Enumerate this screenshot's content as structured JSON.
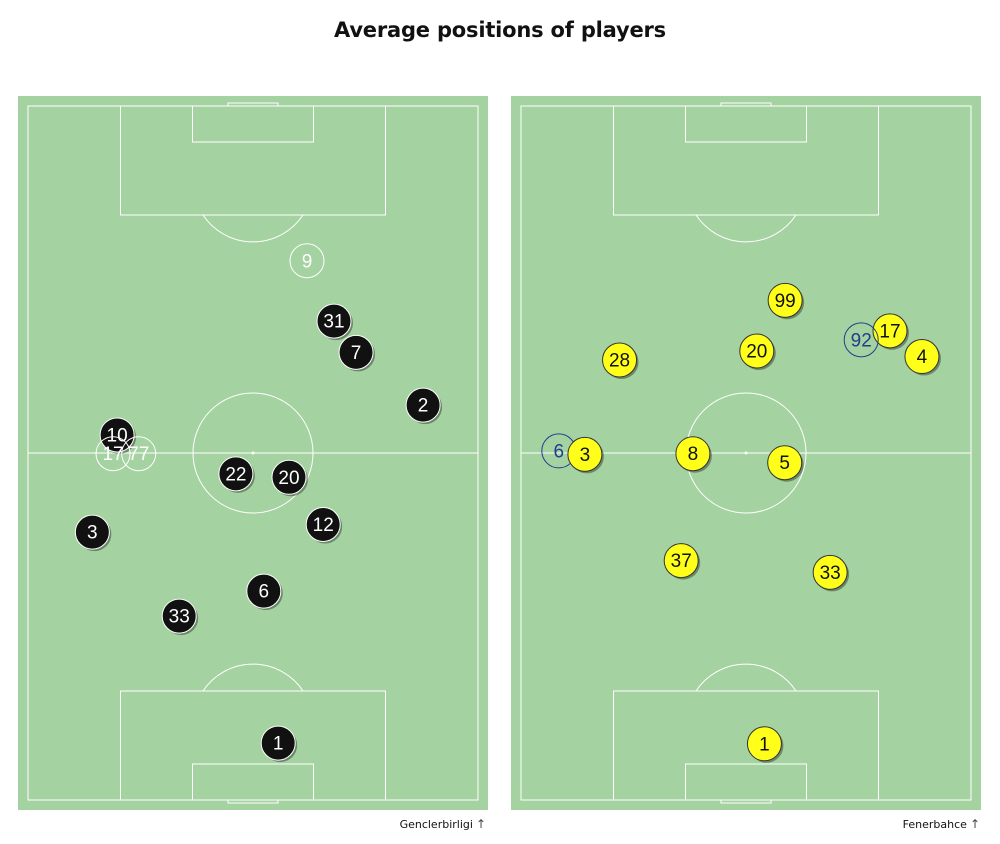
{
  "title": "Average positions of players",
  "colors": {
    "pitch": "#a5d2a1",
    "lines": "#ffffff",
    "home_marker": "#111111",
    "home_sub_outline": "#ffffff",
    "away_marker": "#ffff1a",
    "away_sub_outline": "#1f3f8f"
  },
  "chart_data": [
    {
      "type": "scatter",
      "team": "Genclerbirligi",
      "attack_direction": "up",
      "xlim": [
        0,
        100
      ],
      "ylim": [
        0,
        100
      ],
      "players": [
        {
          "number": "9",
          "x": 62.0,
          "y": 77.7,
          "substitute": true
        },
        {
          "number": "31",
          "x": 68.0,
          "y": 69.0,
          "substitute": false
        },
        {
          "number": "7",
          "x": 72.9,
          "y": 64.5,
          "substitute": false
        },
        {
          "number": "2",
          "x": 87.8,
          "y": 56.9,
          "substitute": false
        },
        {
          "number": "10",
          "x": 19.8,
          "y": 52.6,
          "substitute": false
        },
        {
          "number": "17",
          "x": 18.9,
          "y": 49.9,
          "substitute": true
        },
        {
          "number": "77",
          "x": 24.6,
          "y": 49.9,
          "substitute": true
        },
        {
          "number": "22",
          "x": 46.2,
          "y": 47.0,
          "substitute": false
        },
        {
          "number": "20",
          "x": 58.0,
          "y": 46.5,
          "substitute": false
        },
        {
          "number": "12",
          "x": 65.6,
          "y": 39.7,
          "substitute": false
        },
        {
          "number": "3",
          "x": 14.3,
          "y": 38.6,
          "substitute": false
        },
        {
          "number": "6",
          "x": 52.4,
          "y": 30.1,
          "substitute": false
        },
        {
          "number": "33",
          "x": 33.6,
          "y": 26.5,
          "substitute": false
        },
        {
          "number": "1",
          "x": 55.6,
          "y": 8.2,
          "substitute": false
        }
      ]
    },
    {
      "type": "scatter",
      "team": "Fenerbahce",
      "attack_direction": "up",
      "xlim": [
        0,
        100
      ],
      "ylim": [
        0,
        100
      ],
      "players": [
        {
          "number": "99",
          "x": 58.7,
          "y": 72.0,
          "substitute": false
        },
        {
          "number": "17",
          "x": 82.0,
          "y": 67.6,
          "substitute": false
        },
        {
          "number": "92",
          "x": 75.6,
          "y": 66.3,
          "substitute": true
        },
        {
          "number": "20",
          "x": 52.4,
          "y": 64.7,
          "substitute": false
        },
        {
          "number": "4",
          "x": 89.1,
          "y": 63.9,
          "substitute": false
        },
        {
          "number": "28",
          "x": 21.9,
          "y": 63.4,
          "substitute": false
        },
        {
          "number": "6",
          "x": 8.4,
          "y": 50.3,
          "substitute": true
        },
        {
          "number": "3",
          "x": 14.2,
          "y": 49.8,
          "substitute": false
        },
        {
          "number": "8",
          "x": 38.2,
          "y": 49.9,
          "substitute": false
        },
        {
          "number": "5",
          "x": 58.6,
          "y": 48.6,
          "substitute": false
        },
        {
          "number": "37",
          "x": 35.6,
          "y": 34.5,
          "substitute": false
        },
        {
          "number": "33",
          "x": 68.7,
          "y": 32.8,
          "substitute": false
        },
        {
          "number": "1",
          "x": 54.1,
          "y": 8.1,
          "substitute": false
        }
      ]
    }
  ]
}
